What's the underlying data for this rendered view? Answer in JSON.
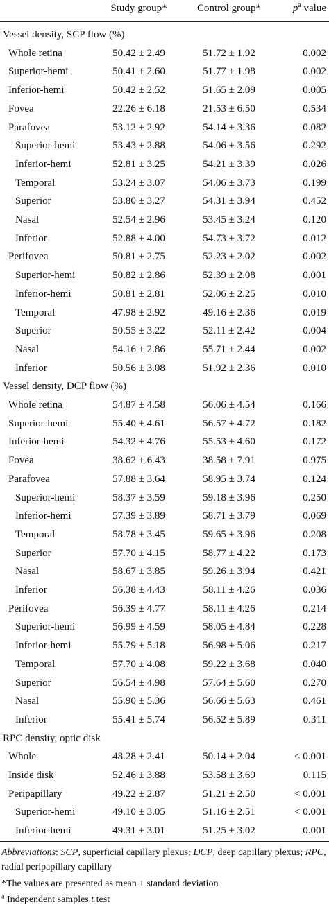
{
  "table": {
    "header": {
      "study": "Study group*",
      "control": "Control group*",
      "p": {
        "italic": "p",
        "sup": "a",
        "rest": " value"
      }
    },
    "sections": [
      {
        "title": "Vessel density, SCP flow (%)",
        "rows": [
          {
            "label": "Whole retina",
            "level": 1,
            "study": "50.42 ± 2.49",
            "control": "51.72 ± 1.92",
            "p": "0.002"
          },
          {
            "label": "Superior-hemi",
            "level": 1,
            "study": "50.41 ± 2.60",
            "control": "51.77 ± 1.98",
            "p": "0.002"
          },
          {
            "label": "Inferior-hemi",
            "level": 1,
            "study": "50.42 ± 2.52",
            "control": "51.65 ± 2.09",
            "p": "0.005"
          },
          {
            "label": "Fovea",
            "level": 1,
            "study": "22.26 ± 6.18",
            "control": "21.53 ± 6.50",
            "p": "0.534"
          },
          {
            "label": "Parafovea",
            "level": 1,
            "study": "53.12 ± 2.92",
            "control": "54.14 ± 3.36",
            "p": "0.082"
          },
          {
            "label": "Superior-hemi",
            "level": 2,
            "study": "53.43 ± 2.88",
            "control": "54.06 ± 3.56",
            "p": "0.292"
          },
          {
            "label": "Inferior-hemi",
            "level": 2,
            "study": "52.81 ± 3.25",
            "control": "54.21 ± 3.39",
            "p": "0.026"
          },
          {
            "label": "Temporal",
            "level": 2,
            "study": "53.24 ± 3.07",
            "control": "54.06 ± 3.73",
            "p": "0.199"
          },
          {
            "label": "Superior",
            "level": 2,
            "study": "53.80 ± 3.27",
            "control": "54.31 ± 3.94",
            "p": "0.452"
          },
          {
            "label": "Nasal",
            "level": 2,
            "study": "52.54 ± 2.96",
            "control": "53.45 ± 3.24",
            "p": "0.120"
          },
          {
            "label": "Inferior",
            "level": 2,
            "study": "52.88 ± 4.00",
            "control": "54.73 ± 3.72",
            "p": "0.012"
          },
          {
            "label": "Perifovea",
            "level": 1,
            "study": "50.81 ± 2.75",
            "control": "52.23 ± 2.02",
            "p": "0.002"
          },
          {
            "label": "Superior-hemi",
            "level": 2,
            "study": "50.82 ± 2.86",
            "control": "52.39 ± 2.08",
            "p": "0.001"
          },
          {
            "label": "Inferior-hemi",
            "level": 2,
            "study": "50.81 ± 2.81",
            "control": "52.06 ± 2.25",
            "p": "0.010"
          },
          {
            "label": "Temporal",
            "level": 2,
            "study": "47.98 ± 2.92",
            "control": "49.16 ± 2.36",
            "p": "0.019"
          },
          {
            "label": "Superior",
            "level": 2,
            "study": "50.55 ± 3.22",
            "control": "52.11 ± 2.42",
            "p": "0.004"
          },
          {
            "label": "Nasal",
            "level": 2,
            "study": "54.16 ± 2.86",
            "control": "55.71 ± 2.44",
            "p": "0.002"
          },
          {
            "label": "Inferior",
            "level": 2,
            "study": "50.56 ± 3.08",
            "control": "51.92 ± 2.36",
            "p": "0.010"
          }
        ]
      },
      {
        "title": "Vessel density, DCP flow (%)",
        "rows": [
          {
            "label": "Whole retina",
            "level": 1,
            "study": "54.87 ± 4.58",
            "control": "56.06 ± 4.54",
            "p": "0.166"
          },
          {
            "label": "Superior-hemi",
            "level": 1,
            "study": "55.40 ± 4.61",
            "control": "56.57 ± 4.72",
            "p": "0.182"
          },
          {
            "label": "Inferior-hemi",
            "level": 1,
            "study": "54.32 ± 4.76",
            "control": "55.53 ± 4.60",
            "p": "0.172"
          },
          {
            "label": "Fovea",
            "level": 1,
            "study": "38.62 ± 6.43",
            "control": "38.58 ± 7.91",
            "p": "0.975"
          },
          {
            "label": "Parafovea",
            "level": 1,
            "study": "57.88 ± 3.64",
            "control": "58.95 ± 3.74",
            "p": "0.124"
          },
          {
            "label": "Superior-hemi",
            "level": 2,
            "study": "58.37 ± 3.59",
            "control": "59.18 ± 3.96",
            "p": "0.250"
          },
          {
            "label": "Inferior-hemi",
            "level": 2,
            "study": "57.39 ± 3.89",
            "control": "58.71 ± 3.79",
            "p": "0.069"
          },
          {
            "label": "Temporal",
            "level": 2,
            "study": "58.78 ± 3.45",
            "control": "59.65 ± 3.96",
            "p": "0.208"
          },
          {
            "label": "Superior",
            "level": 2,
            "study": "57.70 ± 4.15",
            "control": "58.77 ± 4.22",
            "p": "0.173"
          },
          {
            "label": "Nasal",
            "level": 2,
            "study": "58.67 ± 3.85",
            "control": "59.26 ± 3.94",
            "p": "0.421"
          },
          {
            "label": "Inferior",
            "level": 2,
            "study": "56.38 ± 4.43",
            "control": "58.11 ± 4.26",
            "p": "0.036"
          },
          {
            "label": "Perifovea",
            "level": 1,
            "study": "56.39 ± 4.77",
            "control": "58.11 ± 4.26",
            "p": "0.214"
          },
          {
            "label": "Superior-hemi",
            "level": 2,
            "study": "56.99 ± 4.59",
            "control": "58.05 ± 4.84",
            "p": "0.228"
          },
          {
            "label": "Inferior-hemi",
            "level": 2,
            "study": "55.79 ± 5.18",
            "control": "56.98 ± 5.06",
            "p": "0.217"
          },
          {
            "label": "Temporal",
            "level": 2,
            "study": "57.70 ± 4.08",
            "control": "59.22 ± 3.68",
            "p": "0.040"
          },
          {
            "label": "Superior",
            "level": 2,
            "study": "56.54 ± 4.98",
            "control": "57.64 ± 5.60",
            "p": "0.270"
          },
          {
            "label": "Nasal",
            "level": 2,
            "study": "55.90 ± 5.36",
            "control": "56.66 ± 5.63",
            "p": "0.461"
          },
          {
            "label": "Inferior",
            "level": 2,
            "study": "55.41 ± 5.74",
            "control": "56.52 ± 5.89",
            "p": "0.311"
          }
        ]
      },
      {
        "title": "RPC density, optic disk",
        "rows": [
          {
            "label": "Whole",
            "level": 1,
            "study": "48.28 ± 2.41",
            "control": "50.14 ± 2.04",
            "p": "< 0.001"
          },
          {
            "label": "Inside disk",
            "level": 1,
            "study": "52.46 ± 3.88",
            "control": "53.58 ± 3.69",
            "p": "0.115"
          },
          {
            "label": "Peripapillary",
            "level": 1,
            "study": "49.22 ± 2.87",
            "control": "51.21 ± 2.50",
            "p": "< 0.001"
          },
          {
            "label": "Superior-hemi",
            "level": 2,
            "study": "49.10 ± 3.05",
            "control": "51.16 ± 2.51",
            "p": "< 0.001"
          },
          {
            "label": "Inferior-hemi",
            "level": 2,
            "study": "49.31 ± 3.01",
            "control": "51.25 ± 3.02",
            "p": "0.001"
          }
        ]
      }
    ],
    "footnotes": [
      [
        {
          "text": "Abbreviations",
          "italic": true
        },
        {
          "text": ": "
        },
        {
          "text": "SCP",
          "italic": true
        },
        {
          "text": ", superficial capillary plexus; "
        },
        {
          "text": "DCP",
          "italic": true
        },
        {
          "text": ", deep capillary plexus; "
        },
        {
          "text": "RPC",
          "italic": true
        },
        {
          "text": ", radial peripapillary capillary"
        }
      ],
      [
        {
          "text": "*The values are presented as mean ± standard deviation"
        }
      ],
      [
        {
          "text": "a",
          "sup": true
        },
        {
          "text": " Independent samples "
        },
        {
          "text": "t",
          "italic": true
        },
        {
          "text": " test"
        }
      ]
    ]
  }
}
